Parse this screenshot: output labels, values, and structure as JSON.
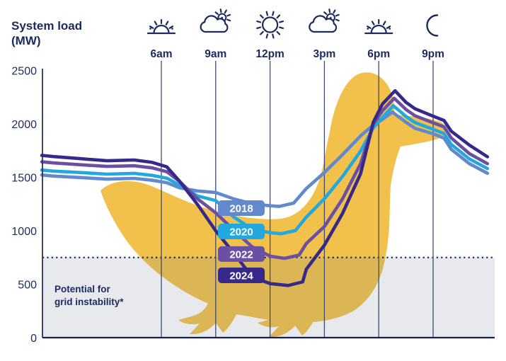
{
  "header": {
    "title_line1": "System load",
    "title_line2": "(MW)"
  },
  "threshold_note": {
    "line1": "Potential for",
    "line2": "grid instability*"
  },
  "chart_data": {
    "type": "line",
    "title": "System load (MW) — duck curve by year",
    "ylabel": "System load (MW)",
    "ylim": [
      0,
      2500
    ],
    "yticks": [
      0,
      500,
      1000,
      1500,
      2000,
      2500
    ],
    "x_hours_range": [
      -0.6,
      24
    ],
    "grid": "vertical-time-lines",
    "legend_position": "inline-labels-on-curves",
    "time_ticks": [
      {
        "hour": 6,
        "label": "6am",
        "icon": "sunrise-icon"
      },
      {
        "hour": 9,
        "label": "9am",
        "icon": "cloud-sun-icon"
      },
      {
        "hour": 12,
        "label": "12pm",
        "icon": "sun-icon"
      },
      {
        "hour": 15,
        "label": "3pm",
        "icon": "cloud-sun-icon"
      },
      {
        "hour": 18,
        "label": "6pm",
        "icon": "sunset-icon"
      },
      {
        "hour": 21,
        "label": "9pm",
        "icon": "moon-icon"
      }
    ],
    "threshold_mw": 750,
    "threshold_label": "Potential for grid instability*",
    "series": [
      {
        "name": "2018",
        "color": "#6289CC",
        "label_mw": 1212,
        "points": [
          [
            -0.6,
            1522
          ],
          [
            0,
            1512
          ],
          [
            1.5,
            1498
          ],
          [
            3,
            1483
          ],
          [
            4.5,
            1490
          ],
          [
            5.5,
            1472
          ],
          [
            6.3,
            1450
          ],
          [
            7,
            1402
          ],
          [
            8,
            1372
          ],
          [
            9,
            1358
          ],
          [
            10,
            1298
          ],
          [
            11,
            1252
          ],
          [
            12,
            1234
          ],
          [
            12.5,
            1228
          ],
          [
            13.3,
            1258
          ],
          [
            14,
            1395
          ],
          [
            15,
            1545
          ],
          [
            16,
            1712
          ],
          [
            17,
            1888
          ],
          [
            17.7,
            1990
          ],
          [
            18.2,
            2042
          ],
          [
            18.75,
            2110
          ],
          [
            19.5,
            2015
          ],
          [
            20,
            1958
          ],
          [
            21,
            1908
          ],
          [
            21.6,
            1866
          ],
          [
            22,
            1762
          ],
          [
            23,
            1628
          ],
          [
            24,
            1538
          ]
        ]
      },
      {
        "name": "2020",
        "color": "#22A7DF",
        "label_mw": 993,
        "points": [
          [
            -0.6,
            1568
          ],
          [
            0,
            1558
          ],
          [
            1.5,
            1545
          ],
          [
            3,
            1530
          ],
          [
            4.5,
            1537
          ],
          [
            5.5,
            1518
          ],
          [
            6.3,
            1492
          ],
          [
            7,
            1428
          ],
          [
            8,
            1325
          ],
          [
            9,
            1283
          ],
          [
            10,
            1128
          ],
          [
            11,
            1015
          ],
          [
            12,
            982
          ],
          [
            12.6,
            972
          ],
          [
            13.4,
            1002
          ],
          [
            14,
            1128
          ],
          [
            15,
            1300
          ],
          [
            16,
            1508
          ],
          [
            17,
            1745
          ],
          [
            17.7,
            1962
          ],
          [
            18.2,
            2058
          ],
          [
            18.8,
            2170
          ],
          [
            19.5,
            2070
          ],
          [
            20,
            2012
          ],
          [
            21,
            1950
          ],
          [
            21.6,
            1910
          ],
          [
            22,
            1808
          ],
          [
            23,
            1672
          ],
          [
            24,
            1582
          ]
        ]
      },
      {
        "name": "2022",
        "color": "#6B4FA2",
        "label_mw": 782,
        "points": [
          [
            -0.6,
            1645
          ],
          [
            0,
            1635
          ],
          [
            1.5,
            1618
          ],
          [
            3,
            1602
          ],
          [
            4.5,
            1608
          ],
          [
            5.5,
            1588
          ],
          [
            6.3,
            1552
          ],
          [
            7,
            1462
          ],
          [
            8,
            1298
          ],
          [
            9,
            1168
          ],
          [
            10,
            1005
          ],
          [
            11,
            850
          ],
          [
            12,
            762
          ],
          [
            12.8,
            742
          ],
          [
            13.6,
            772
          ],
          [
            14,
            880
          ],
          [
            15,
            1040
          ],
          [
            16,
            1298
          ],
          [
            17,
            1628
          ],
          [
            17.7,
            1998
          ],
          [
            18.2,
            2122
          ],
          [
            18.85,
            2240
          ],
          [
            19.5,
            2135
          ],
          [
            20,
            2076
          ],
          [
            21,
            2010
          ],
          [
            21.6,
            1972
          ],
          [
            22,
            1868
          ],
          [
            23,
            1722
          ],
          [
            24,
            1628
          ]
        ]
      },
      {
        "name": "2024",
        "color": "#36298A",
        "label_mw": 583,
        "points": [
          [
            -0.6,
            1705
          ],
          [
            0,
            1695
          ],
          [
            1.5,
            1675
          ],
          [
            3,
            1655
          ],
          [
            4.5,
            1662
          ],
          [
            5.5,
            1640
          ],
          [
            6.3,
            1598
          ],
          [
            7,
            1465
          ],
          [
            8,
            1245
          ],
          [
            9,
            1000
          ],
          [
            10,
            790
          ],
          [
            11,
            570
          ],
          [
            12,
            505
          ],
          [
            13,
            488
          ],
          [
            13.8,
            522
          ],
          [
            14,
            640
          ],
          [
            15,
            865
          ],
          [
            16,
            1162
          ],
          [
            17,
            1535
          ],
          [
            17.7,
            2015
          ],
          [
            18.2,
            2185
          ],
          [
            18.9,
            2310
          ],
          [
            19.5,
            2202
          ],
          [
            20,
            2142
          ],
          [
            21,
            2072
          ],
          [
            21.6,
            2032
          ],
          [
            22,
            1932
          ],
          [
            23,
            1802
          ],
          [
            24,
            1692
          ]
        ]
      }
    ],
    "colors": {
      "text_navy": "#1C2A5E",
      "duck_yellow": "#F2C14B",
      "instability_band": "rgba(104,116,145,0.16)",
      "gridline": "#3D4C6F",
      "x_axis": "#13224E",
      "y_axis": "#27355F"
    }
  }
}
